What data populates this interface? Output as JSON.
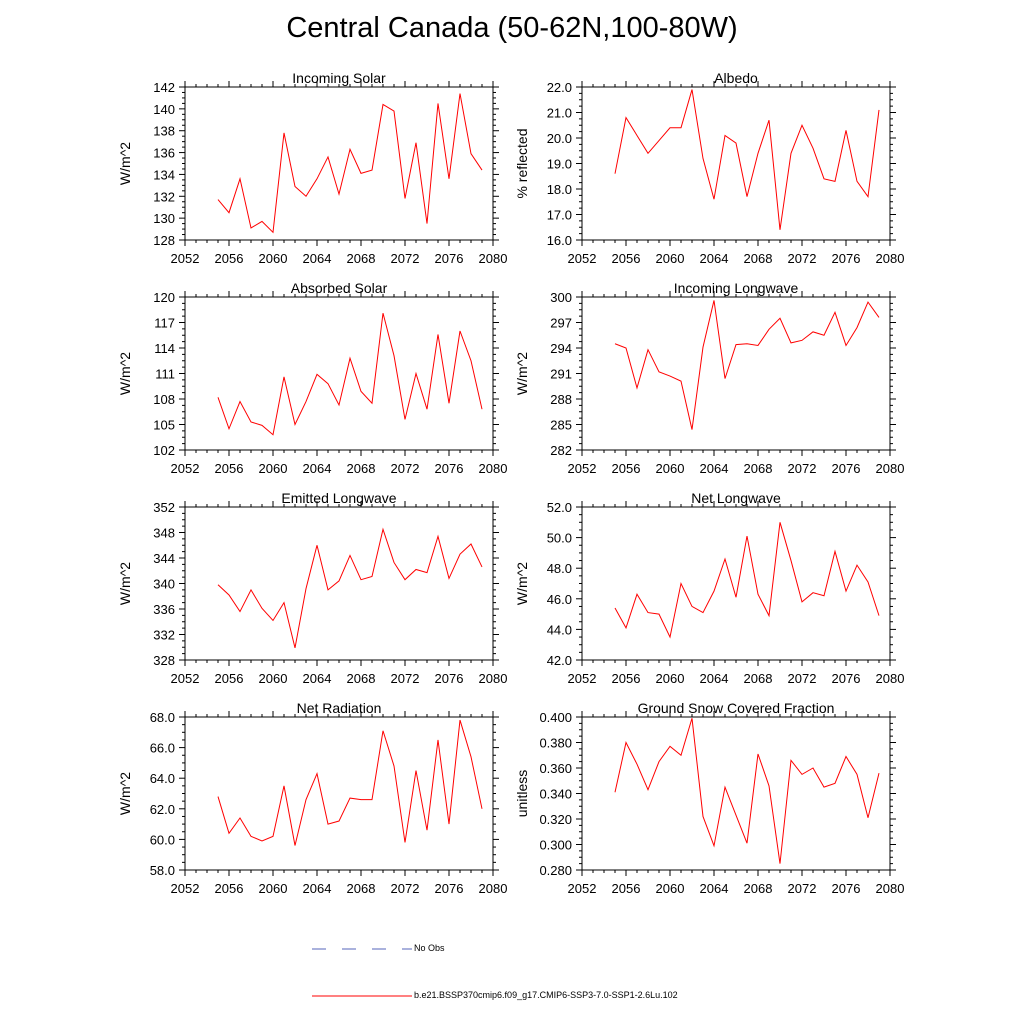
{
  "page": {
    "title": "Central Canada (50-62N,100-80W)"
  },
  "legend": {
    "obs_label": "No Obs",
    "model_label": "b.e21.BSSP370cmip6.f09_g17.CMIP6-SSP3-7.0-SSP1-2.6Lu.102",
    "obs_color": "#5566bb",
    "model_color": "#ff0000"
  },
  "chart_data": [
    {
      "type": "line",
      "title": "Incoming Solar",
      "ylabel": "W/m^2",
      "xlabel": "",
      "xlim": [
        2052,
        2080
      ],
      "ylim": [
        128,
        142
      ],
      "x_ticks": [
        "2052",
        "2056",
        "2060",
        "2064",
        "2068",
        "2072",
        "2076",
        "2080"
      ],
      "y_ticks": [
        "128",
        "130",
        "132",
        "134",
        "136",
        "138",
        "140",
        "142"
      ],
      "x": [
        2055,
        2056,
        2057,
        2058,
        2059,
        2060,
        2061,
        2062,
        2063,
        2064,
        2065,
        2066,
        2067,
        2068,
        2069,
        2070,
        2071,
        2072,
        2073,
        2074,
        2075,
        2076,
        2077,
        2078,
        2079
      ],
      "series": [
        {
          "values": [
            131.7,
            130.5,
            133.6,
            129.1,
            129.7,
            128.7,
            137.8,
            132.9,
            132.0,
            133.6,
            135.6,
            132.2,
            136.3,
            134.1,
            134.4,
            140.4,
            139.8,
            131.8,
            136.9,
            129.5,
            140.5,
            133.6,
            141.4,
            135.9,
            134.4
          ]
        }
      ]
    },
    {
      "type": "line",
      "title": "Albedo",
      "ylabel": "% reflected",
      "xlabel": "",
      "xlim": [
        2052,
        2080
      ],
      "ylim": [
        16.0,
        22.0
      ],
      "x_ticks": [
        "2052",
        "2056",
        "2060",
        "2064",
        "2068",
        "2072",
        "2076",
        "2080"
      ],
      "y_ticks": [
        "16.0",
        "17.0",
        "18.0",
        "19.0",
        "20.0",
        "21.0",
        "22.0"
      ],
      "x": [
        2055,
        2056,
        2057,
        2058,
        2059,
        2060,
        2061,
        2062,
        2063,
        2064,
        2065,
        2066,
        2067,
        2068,
        2069,
        2070,
        2071,
        2072,
        2073,
        2074,
        2075,
        2076,
        2077,
        2078,
        2079
      ],
      "series": [
        {
          "values": [
            18.6,
            20.8,
            20.1,
            19.4,
            19.9,
            20.4,
            20.4,
            21.9,
            19.2,
            17.6,
            20.1,
            19.8,
            17.7,
            19.4,
            20.7,
            16.4,
            19.4,
            20.5,
            19.6,
            18.4,
            18.3,
            20.3,
            18.3,
            17.7,
            21.1
          ]
        }
      ]
    },
    {
      "type": "line",
      "title": "Absorbed Solar",
      "ylabel": "W/m^2",
      "xlabel": "",
      "xlim": [
        2052,
        2080
      ],
      "ylim": [
        102,
        120
      ],
      "x_ticks": [
        "2052",
        "2056",
        "2060",
        "2064",
        "2068",
        "2072",
        "2076",
        "2080"
      ],
      "y_ticks": [
        "102",
        "105",
        "108",
        "111",
        "114",
        "117",
        "120"
      ],
      "x": [
        2055,
        2056,
        2057,
        2058,
        2059,
        2060,
        2061,
        2062,
        2063,
        2064,
        2065,
        2066,
        2067,
        2068,
        2069,
        2070,
        2071,
        2072,
        2073,
        2074,
        2075,
        2076,
        2077,
        2078,
        2079
      ],
      "series": [
        {
          "values": [
            108.2,
            104.5,
            107.7,
            105.3,
            104.9,
            103.8,
            110.6,
            105.0,
            107.7,
            110.9,
            109.8,
            107.3,
            112.8,
            108.9,
            107.5,
            118.1,
            113.1,
            105.6,
            111.0,
            106.8,
            115.6,
            107.5,
            116.0,
            112.5,
            106.8
          ]
        }
      ]
    },
    {
      "type": "line",
      "title": "Incoming Longwave",
      "ylabel": "W/m^2",
      "xlabel": "",
      "xlim": [
        2052,
        2080
      ],
      "ylim": [
        282,
        300
      ],
      "x_ticks": [
        "2052",
        "2056",
        "2060",
        "2064",
        "2068",
        "2072",
        "2076",
        "2080"
      ],
      "y_ticks": [
        "282",
        "285",
        "288",
        "291",
        "294",
        "297",
        "300"
      ],
      "x": [
        2055,
        2056,
        2057,
        2058,
        2059,
        2060,
        2061,
        2062,
        2063,
        2064,
        2065,
        2066,
        2067,
        2068,
        2069,
        2070,
        2071,
        2072,
        2073,
        2074,
        2075,
        2076,
        2077,
        2078,
        2079
      ],
      "series": [
        {
          "values": [
            294.5,
            294.0,
            289.3,
            293.8,
            291.2,
            290.7,
            290.1,
            284.4,
            294.1,
            299.6,
            290.4,
            294.4,
            294.5,
            294.3,
            296.2,
            297.5,
            294.6,
            294.9,
            295.9,
            295.5,
            298.2,
            294.3,
            296.4,
            299.4,
            297.6
          ]
        }
      ]
    },
    {
      "type": "line",
      "title": "Emitted Longwave",
      "ylabel": "W/m^2",
      "xlabel": "",
      "xlim": [
        2052,
        2080
      ],
      "ylim": [
        328,
        352
      ],
      "x_ticks": [
        "2052",
        "2056",
        "2060",
        "2064",
        "2068",
        "2072",
        "2076",
        "2080"
      ],
      "y_ticks": [
        "328",
        "332",
        "336",
        "340",
        "344",
        "348",
        "352"
      ],
      "x": [
        2055,
        2056,
        2057,
        2058,
        2059,
        2060,
        2061,
        2062,
        2063,
        2064,
        2065,
        2066,
        2067,
        2068,
        2069,
        2070,
        2071,
        2072,
        2073,
        2074,
        2075,
        2076,
        2077,
        2078,
        2079
      ],
      "series": [
        {
          "values": [
            339.8,
            338.2,
            335.6,
            339.0,
            336.1,
            334.2,
            337.0,
            329.9,
            339.2,
            346.0,
            339.0,
            340.4,
            344.4,
            340.6,
            341.1,
            348.5,
            343.3,
            340.6,
            342.2,
            341.7,
            347.4,
            340.8,
            344.6,
            346.2,
            342.6
          ]
        }
      ]
    },
    {
      "type": "line",
      "title": "Net Longwave",
      "ylabel": "W/m^2",
      "xlabel": "",
      "xlim": [
        2052,
        2080
      ],
      "ylim": [
        42.0,
        52.0
      ],
      "x_ticks": [
        "2052",
        "2056",
        "2060",
        "2064",
        "2068",
        "2072",
        "2076",
        "2080"
      ],
      "y_ticks": [
        "42.0",
        "44.0",
        "46.0",
        "48.0",
        "50.0",
        "52.0"
      ],
      "x": [
        2055,
        2056,
        2057,
        2058,
        2059,
        2060,
        2061,
        2062,
        2063,
        2064,
        2065,
        2066,
        2067,
        2068,
        2069,
        2070,
        2071,
        2072,
        2073,
        2074,
        2075,
        2076,
        2077,
        2078,
        2079
      ],
      "series": [
        {
          "values": [
            45.4,
            44.1,
            46.3,
            45.1,
            45.0,
            43.5,
            47.0,
            45.5,
            45.1,
            46.5,
            48.6,
            46.1,
            50.1,
            46.3,
            44.9,
            51.0,
            48.5,
            45.8,
            46.4,
            46.2,
            49.1,
            46.5,
            48.2,
            47.1,
            44.9
          ]
        }
      ]
    },
    {
      "type": "line",
      "title": "Net Radiation",
      "ylabel": "W/m^2",
      "xlabel": "",
      "xlim": [
        2052,
        2080
      ],
      "ylim": [
        58.0,
        68.0
      ],
      "x_ticks": [
        "2052",
        "2056",
        "2060",
        "2064",
        "2068",
        "2072",
        "2076",
        "2080"
      ],
      "y_ticks": [
        "58.0",
        "60.0",
        "62.0",
        "64.0",
        "66.0",
        "68.0"
      ],
      "x": [
        2055,
        2056,
        2057,
        2058,
        2059,
        2060,
        2061,
        2062,
        2063,
        2064,
        2065,
        2066,
        2067,
        2068,
        2069,
        2070,
        2071,
        2072,
        2073,
        2074,
        2075,
        2076,
        2077,
        2078,
        2079
      ],
      "series": [
        {
          "values": [
            62.8,
            60.4,
            61.4,
            60.2,
            59.9,
            60.2,
            63.5,
            59.6,
            62.6,
            64.3,
            61.0,
            61.2,
            62.7,
            62.6,
            62.6,
            67.1,
            64.8,
            59.8,
            64.5,
            60.6,
            66.5,
            61.0,
            67.8,
            65.4,
            62.0
          ]
        }
      ]
    },
    {
      "type": "line",
      "title": "Ground Snow Covered Fraction",
      "ylabel": "unitless",
      "xlabel": "",
      "xlim": [
        2052,
        2080
      ],
      "ylim": [
        0.28,
        0.4
      ],
      "x_ticks": [
        "2052",
        "2056",
        "2060",
        "2064",
        "2068",
        "2072",
        "2076",
        "2080"
      ],
      "y_ticks": [
        "0.280",
        "0.300",
        "0.320",
        "0.340",
        "0.360",
        "0.380",
        "0.400"
      ],
      "x": [
        2055,
        2056,
        2057,
        2058,
        2059,
        2060,
        2061,
        2062,
        2063,
        2064,
        2065,
        2066,
        2067,
        2068,
        2069,
        2070,
        2071,
        2072,
        2073,
        2074,
        2075,
        2076,
        2077,
        2078,
        2079
      ],
      "series": [
        {
          "values": [
            0.341,
            0.38,
            0.363,
            0.343,
            0.365,
            0.377,
            0.37,
            0.399,
            0.322,
            0.299,
            0.345,
            0.323,
            0.301,
            0.371,
            0.346,
            0.285,
            0.366,
            0.355,
            0.36,
            0.345,
            0.348,
            0.369,
            0.355,
            0.321,
            0.356
          ]
        }
      ]
    }
  ]
}
